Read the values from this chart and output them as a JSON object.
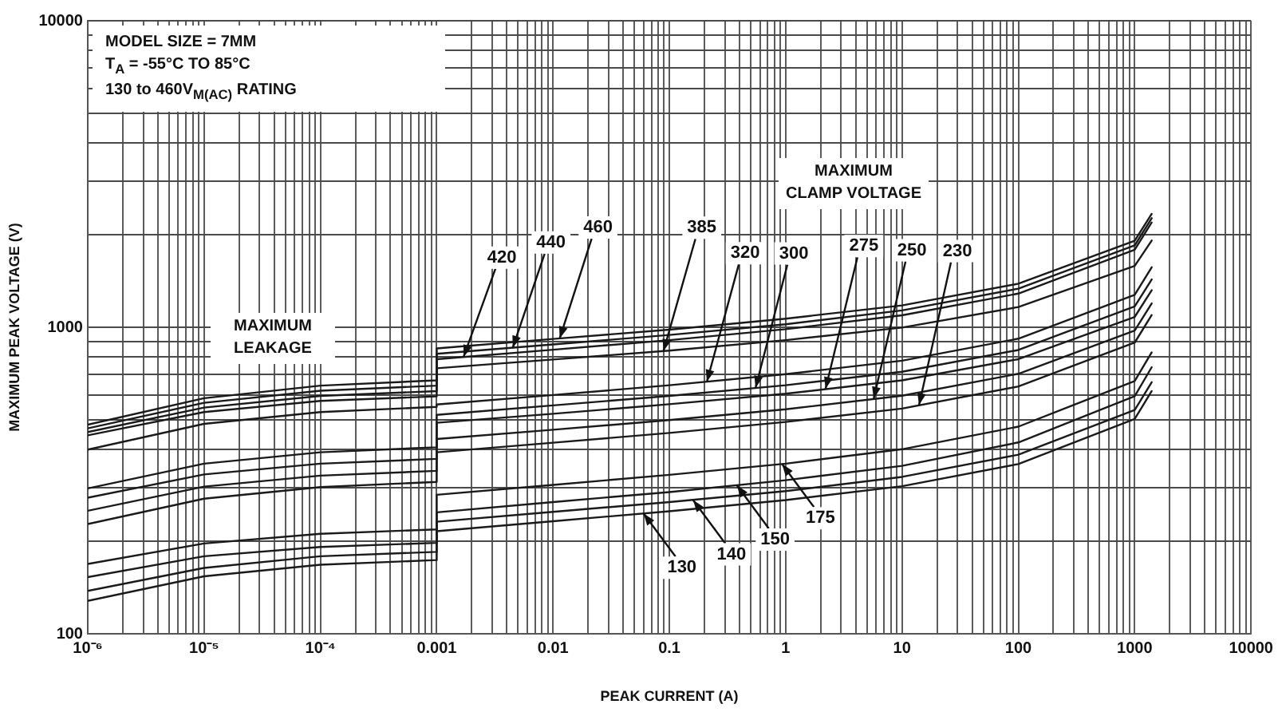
{
  "chart_data": {
    "type": "line",
    "xlabel": "PEAK CURRENT (A)",
    "ylabel": "MAXIMUM PEAK VOLTAGE (V)",
    "log": "xy",
    "grid": true,
    "legend": false,
    "marker": "none",
    "line_style": "solid",
    "xlim": [
      1e-06,
      10000
    ],
    "ylim": [
      100,
      10000
    ],
    "xticks": [
      {
        "value": 1e-06,
        "label": "10⁻⁶"
      },
      {
        "value": 2e-06,
        "label": null
      },
      {
        "value": 3e-06,
        "label": null
      },
      {
        "value": 4e-06,
        "label": null
      },
      {
        "value": 5e-06,
        "label": null
      },
      {
        "value": 6e-06,
        "label": null
      },
      {
        "value": 7e-06,
        "label": null
      },
      {
        "value": 8e-06,
        "label": null
      },
      {
        "value": 9e-06,
        "label": null
      },
      {
        "value": 1e-05,
        "label": "10⁻⁵"
      },
      {
        "value": 2e-05,
        "label": null
      },
      {
        "value": 3e-05,
        "label": null
      },
      {
        "value": 4e-05,
        "label": null
      },
      {
        "value": 5e-05,
        "label": null
      },
      {
        "value": 6e-05,
        "label": null
      },
      {
        "value": 7e-05,
        "label": null
      },
      {
        "value": 8e-05,
        "label": null
      },
      {
        "value": 9e-05,
        "label": null
      },
      {
        "value": 0.0001,
        "label": "10⁻⁴"
      },
      {
        "value": 0.0002,
        "label": null
      },
      {
        "value": 0.0003,
        "label": null
      },
      {
        "value": 0.0004,
        "label": null
      },
      {
        "value": 0.0005,
        "label": null
      },
      {
        "value": 0.0006,
        "label": null
      },
      {
        "value": 0.0007,
        "label": null
      },
      {
        "value": 0.0008,
        "label": null
      },
      {
        "value": 0.0009,
        "label": null
      },
      0.001,
      {
        "value": 0.002,
        "label": null
      },
      {
        "value": 0.003,
        "label": null
      },
      {
        "value": 0.004,
        "label": null
      },
      {
        "value": 0.005,
        "label": null
      },
      {
        "value": 0.006,
        "label": null
      },
      {
        "value": 0.007,
        "label": null
      },
      {
        "value": 0.008,
        "label": null
      },
      {
        "value": 0.009,
        "label": null
      },
      0.01,
      {
        "value": 0.02,
        "label": null
      },
      {
        "value": 0.03,
        "label": null
      },
      {
        "value": 0.04,
        "label": null
      },
      {
        "value": 0.05,
        "label": null
      },
      {
        "value": 0.06,
        "label": null
      },
      {
        "value": 0.07,
        "label": null
      },
      {
        "value": 0.08,
        "label": null
      },
      {
        "value": 0.09,
        "label": null
      },
      0.1,
      {
        "value": 0.2,
        "label": null
      },
      {
        "value": 0.3,
        "label": null
      },
      {
        "value": 0.4,
        "label": null
      },
      {
        "value": 0.5,
        "label": null
      },
      {
        "value": 0.6,
        "label": null
      },
      {
        "value": 0.7,
        "label": null
      },
      {
        "value": 0.8,
        "label": null
      },
      {
        "value": 0.9,
        "label": null
      },
      1,
      {
        "value": 2,
        "label": null
      },
      {
        "value": 3,
        "label": null
      },
      {
        "value": 4,
        "label": null
      },
      {
        "value": 5,
        "label": null
      },
      {
        "value": 6,
        "label": null
      },
      {
        "value": 7,
        "label": null
      },
      {
        "value": 8,
        "label": null
      },
      {
        "value": 9,
        "label": null
      },
      10,
      {
        "value": 20,
        "label": null
      },
      {
        "value": 30,
        "label": null
      },
      {
        "value": 40,
        "label": null
      },
      {
        "value": 50,
        "label": null
      },
      {
        "value": 60,
        "label": null
      },
      {
        "value": 70,
        "label": null
      },
      {
        "value": 80,
        "label": null
      },
      {
        "value": 90,
        "label": null
      },
      100,
      {
        "value": 200,
        "label": null
      },
      {
        "value": 300,
        "label": null
      },
      {
        "value": 400,
        "label": null
      },
      {
        "value": 500,
        "label": null
      },
      {
        "value": 600,
        "label": null
      },
      {
        "value": 700,
        "label": null
      },
      {
        "value": 800,
        "label": null
      },
      {
        "value": 900,
        "label": null
      },
      1000,
      {
        "value": 2000,
        "label": null
      },
      {
        "value": 3000,
        "label": null
      },
      {
        "value": 4000,
        "label": null
      },
      {
        "value": 5000,
        "label": null
      },
      {
        "value": 6000,
        "label": null
      },
      {
        "value": 7000,
        "label": null
      },
      {
        "value": 8000,
        "label": null
      },
      {
        "value": 9000,
        "label": null
      },
      10000
    ],
    "yticks": [
      100,
      {
        "value": 200,
        "label": null
      },
      {
        "value": 300,
        "label": null
      },
      {
        "value": 400,
        "label": null
      },
      {
        "value": 500,
        "label": null
      },
      {
        "value": 600,
        "label": null
      },
      {
        "value": 700,
        "label": null
      },
      {
        "value": 800,
        "label": null
      },
      {
        "value": 900,
        "label": null
      },
      1000,
      {
        "value": 2000,
        "label": null
      },
      {
        "value": 3000,
        "label": null
      },
      {
        "value": 4000,
        "label": null
      },
      {
        "value": 5000,
        "label": null
      },
      {
        "value": 6000,
        "label": null
      },
      {
        "value": 7000,
        "label": null
      },
      {
        "value": 8000,
        "label": null
      },
      {
        "value": 9000,
        "label": null
      },
      10000
    ],
    "x": [
      1e-06,
      1e-05,
      0.0001,
      0.001,
      0.001,
      0.01,
      0.1,
      1,
      10,
      100,
      1000,
      1400
    ],
    "series": [
      {
        "color": "#1a1a1a",
        "values": [
          128,
          154,
          168,
          174,
          216,
          233,
          251,
          273,
          303,
          358,
          502,
          619
        ]
      },
      {
        "color": "#1a1a1a",
        "values": [
          138,
          164,
          179,
          185,
          232,
          250,
          269,
          292,
          325,
          384,
          537,
          662
        ]
      },
      {
        "color": "#1a1a1a",
        "values": [
          153,
          179,
          192,
          198,
          249,
          269,
          290,
          317,
          353,
          421,
          596,
          741
        ]
      },
      {
        "color": "#1a1a1a",
        "values": [
          169,
          197,
          212,
          219,
          284,
          306,
          330,
          359,
          400,
          474,
          668,
          828
        ]
      },
      {
        "color": "#1a1a1a",
        "values": [
          228,
          276,
          301,
          313,
          391,
          420,
          452,
          491,
          543,
          641,
          891,
          1096
        ]
      },
      {
        "color": "#1a1a1a",
        "values": [
          252,
          302,
          328,
          340,
          432,
          463,
          498,
          540,
          598,
          705,
          975,
          1197
        ]
      },
      {
        "color": "#1a1a1a",
        "values": [
          278,
          331,
          359,
          372,
          488,
          522,
          561,
          607,
          671,
          787,
          1081,
          1321
        ]
      },
      {
        "color": "#1a1a1a",
        "values": [
          298,
          359,
          391,
          406,
          518,
          556,
          597,
          647,
          716,
          843,
          1169,
          1432
        ]
      },
      {
        "color": "#1a1a1a",
        "values": [
          399,
          484,
          529,
          550,
          560,
          601,
          647,
          703,
          778,
          918,
          1276,
          1570
        ]
      },
      {
        "color": "#1a1a1a",
        "values": [
          444,
          529,
          575,
          595,
          735,
          785,
          839,
          908,
          998,
          1164,
          1585,
          1919
        ]
      },
      {
        "color": "#1a1a1a",
        "values": [
          455,
          547,
          597,
          619,
          787,
          845,
          908,
          986,
          1094,
          1288,
          1791,
          2198
        ]
      },
      {
        "color": "#1a1a1a",
        "values": [
          468,
          567,
          621,
          645,
          819,
          879,
          944,
          1023,
          1135,
          1337,
          1849,
          2270
        ]
      },
      {
        "color": "#1a1a1a",
        "values": [
          481,
          587,
          645,
          671,
          853,
          916,
          982,
          1067,
          1178,
          1387,
          1914,
          2344
        ]
      }
    ],
    "annotations": [
      "MODEL SIZE = 7MM",
      "T$_{A}$ = -55°C TO 85°C",
      "130 to 460V$_{M(AC)}$ RATING",
      "MAXIMUM LEAKAGE",
      "MAXIMUM CLAMP VOLTAGE",
      {
        "text": "420",
        "x": 0.0017,
        "y": 800
      },
      {
        "text": "440",
        "x": 0.0045,
        "y": 857
      },
      {
        "text": "460",
        "x": 0.0114,
        "y": 919
      },
      {
        "text": "385",
        "x": 0.089,
        "y": 836
      },
      {
        "text": "320",
        "x": 0.21,
        "y": 664
      },
      {
        "text": "300",
        "x": 0.55,
        "y": 634
      },
      {
        "text": "275",
        "x": 2.2,
        "y": 629
      },
      {
        "text": "250",
        "x": 5.7,
        "y": 584
      },
      {
        "text": "230",
        "x": 14,
        "y": 557
      },
      {
        "text": "130",
        "x": 0.06,
        "y": 247
      },
      {
        "text": "140",
        "x": 0.16,
        "y": 273
      },
      {
        "text": "150",
        "x": 0.38,
        "y": 305
      },
      {
        "text": "175",
        "x": 0.93,
        "y": 358
      }
    ]
  }
}
